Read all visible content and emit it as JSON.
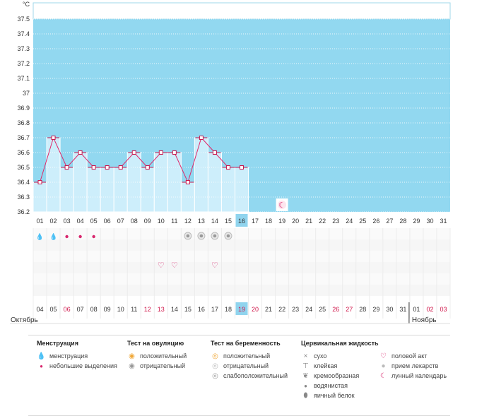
{
  "chart_data": {
    "type": "line",
    "ylabel": "°C",
    "y_ticks": [
      "37.5",
      "37.4",
      "37.3",
      "37.2",
      "37.1",
      "37",
      "36.9",
      "36.8",
      "36.7",
      "36.6",
      "36.5",
      "36.4",
      "36.3",
      "36.2"
    ],
    "ylim": [
      36.2,
      37.5
    ],
    "grid": true,
    "x_top": [
      "01",
      "02",
      "03",
      "04",
      "05",
      "06",
      "07",
      "08",
      "09",
      "10",
      "11",
      "12",
      "13",
      "14",
      "15",
      "16",
      "17",
      "18",
      "19",
      "20",
      "21",
      "22",
      "23",
      "24",
      "25",
      "26",
      "27",
      "28",
      "29",
      "30",
      "31"
    ],
    "x_bottom": [
      "04",
      "05",
      "06",
      "07",
      "08",
      "09",
      "10",
      "11",
      "12",
      "13",
      "14",
      "15",
      "16",
      "17",
      "18",
      "19",
      "20",
      "21",
      "22",
      "23",
      "24",
      "25",
      "26",
      "27",
      "28",
      "29",
      "30",
      "31",
      "01",
      "02",
      "03"
    ],
    "month_left": "Октябрь",
    "month_right": "Ноябрь",
    "highlight_day_index": 15,
    "series": [
      {
        "values": [
          36.4,
          36.7,
          36.5,
          36.6,
          36.5,
          36.5,
          36.5,
          36.6,
          36.5,
          36.6,
          36.6,
          36.4,
          36.7,
          36.6,
          36.5,
          36.5
        ]
      }
    ],
    "menstruation_heavy": [
      0,
      1
    ],
    "menstruation_light": [
      2,
      3,
      4
    ],
    "ovulation_negative": [
      11,
      12,
      13,
      14
    ],
    "intercourse": [
      9,
      10,
      13
    ],
    "moon_day_index": 18,
    "colors": {
      "pre_bg": "#92d8f0",
      "bar_fill": "#cdeefb",
      "line": "#e0286a",
      "weekend_text": "#d0164a",
      "highlight": "#90d4ee",
      "marker_edge": "#c8184e"
    }
  },
  "legend": {
    "menstruation": {
      "title": "Менструация",
      "items": [
        "менструация",
        "небольшие выделения"
      ]
    },
    "ovulation_test": {
      "title": "Тест на овуляцию",
      "items": [
        "положительный",
        "отрицательный"
      ]
    },
    "pregnancy_test": {
      "title": "Тест на беременность",
      "items": [
        "положительный",
        "отрицательный",
        "слабоположительный"
      ]
    },
    "cervical_fluid": {
      "title": "Цервикальная жидкость",
      "items": [
        "сухо",
        "клейкая",
        "кремообразная",
        "водянистая",
        "яичный белок"
      ]
    },
    "other": {
      "items": [
        "половой акт",
        "прием лекарств",
        "лунный календарь"
      ]
    }
  }
}
